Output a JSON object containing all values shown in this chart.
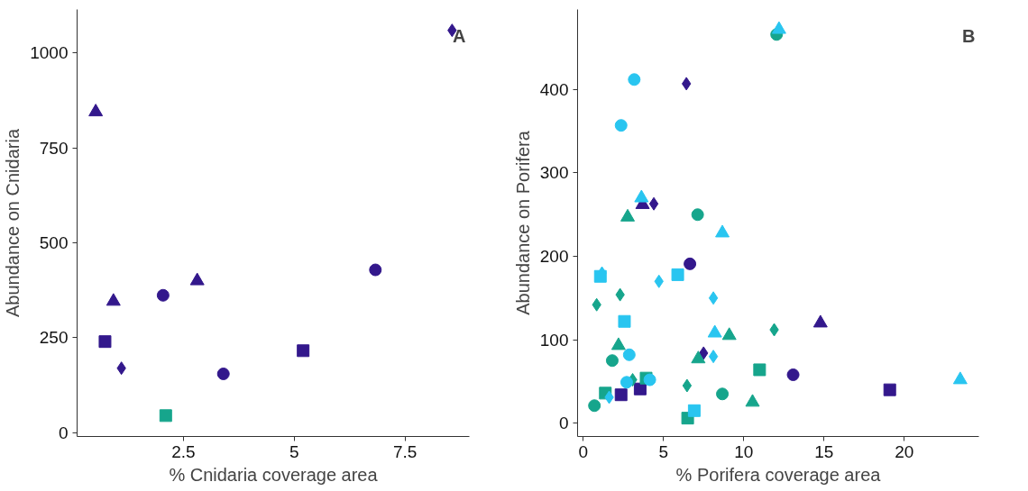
{
  "chart_data": [
    {
      "type": "scatter",
      "xlabel": "% Cnidaria coverage area",
      "ylabel": "Abundance on Cnidaria",
      "annotations": [
        "A"
      ],
      "xlim": [
        0.1,
        8.95
      ],
      "ylim": [
        -10,
        1115
      ],
      "xticks": [
        2.5,
        5,
        7.5
      ],
      "yticks": [
        0,
        250,
        500,
        750,
        1000
      ],
      "grid": false,
      "series": [
        {
          "color": "#33188c",
          "marker": "diamond",
          "x": [
            8.56,
            1.1
          ],
          "values": [
            1060,
            170
          ]
        },
        {
          "color": "#33188c",
          "marker": "triangle",
          "x": [
            0.52,
            0.92,
            2.81
          ],
          "values": [
            845,
            346,
            400
          ]
        },
        {
          "color": "#33188c",
          "marker": "square",
          "x": [
            0.73,
            5.2
          ],
          "values": [
            240,
            216
          ]
        },
        {
          "color": "#33188c",
          "marker": "circle",
          "x": [
            2.04,
            3.4,
            6.83
          ],
          "values": [
            362,
            155,
            429
          ]
        },
        {
          "color": "#16a58c",
          "marker": "square",
          "x": [
            2.1
          ],
          "values": [
            45
          ]
        }
      ]
    },
    {
      "type": "scatter",
      "xlabel": "% Porifera coverage area",
      "ylabel": "Abundance on Porifera",
      "annotations": [
        "B"
      ],
      "xlim": [
        -0.35,
        24.65
      ],
      "ylim": [
        -16,
        496
      ],
      "xticks": [
        0,
        5,
        10,
        15,
        20
      ],
      "yticks": [
        0,
        100,
        200,
        300,
        400
      ],
      "grid": false,
      "series": [
        {
          "color": "#33188c",
          "marker": "diamond",
          "x": [
            6.43,
            4.4,
            7.5
          ],
          "values": [
            407,
            263,
            84
          ]
        },
        {
          "color": "#33188c",
          "marker": "triangle",
          "x": [
            3.7,
            14.78
          ],
          "values": [
            262,
            120
          ]
        },
        {
          "color": "#33188c",
          "marker": "square",
          "x": [
            3.55,
            19.1,
            2.36
          ],
          "values": [
            41,
            40,
            34
          ]
        },
        {
          "color": "#33188c",
          "marker": "circle",
          "x": [
            6.65,
            13.08
          ],
          "values": [
            191,
            58
          ]
        },
        {
          "color": "#16a58c",
          "marker": "diamond",
          "x": [
            2.3,
            0.84,
            11.9,
            3.08,
            6.47
          ],
          "values": [
            154,
            142,
            112,
            52,
            45
          ]
        },
        {
          "color": "#16a58c",
          "marker": "triangle",
          "x": [
            2.77,
            9.1,
            2.2,
            7.17,
            10.55
          ],
          "values": [
            247,
            105,
            93,
            77,
            25
          ]
        },
        {
          "color": "#16a58c",
          "marker": "square",
          "x": [
            10.99,
            3.92,
            1.38,
            6.51
          ],
          "values": [
            64,
            54,
            36,
            6
          ]
        },
        {
          "color": "#16a58c",
          "marker": "circle",
          "x": [
            12.05,
            7.13,
            1.81,
            8.67,
            0.7
          ],
          "values": [
            466,
            250,
            75,
            35,
            21
          ]
        },
        {
          "color": "#29c5f0",
          "marker": "diamond",
          "x": [
            1.17,
            4.72,
            8.11,
            8.11,
            1.62
          ],
          "values": [
            180,
            170,
            150,
            80,
            31
          ]
        },
        {
          "color": "#29c5f0",
          "marker": "triangle",
          "x": [
            12.2,
            3.63,
            8.67,
            8.2,
            23.49
          ],
          "values": [
            472,
            270,
            228,
            108,
            52
          ]
        },
        {
          "color": "#29c5f0",
          "marker": "square",
          "x": [
            1.07,
            5.89,
            2.57,
            6.92
          ],
          "values": [
            176,
            178,
            122,
            15
          ]
        },
        {
          "color": "#29c5f0",
          "marker": "circle",
          "x": [
            3.18,
            2.36,
            2.87,
            4.15,
            2.71
          ],
          "values": [
            412,
            357,
            82,
            52,
            49
          ]
        }
      ]
    }
  ]
}
